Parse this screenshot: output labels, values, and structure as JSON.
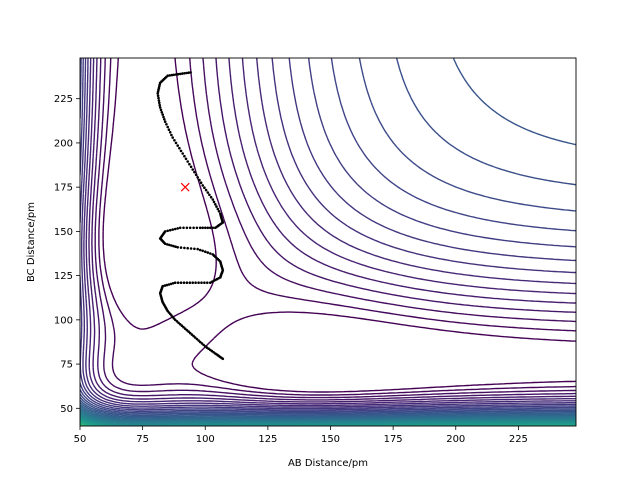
{
  "chart_data": {
    "type": "contour",
    "title": "",
    "xlabel": "AB Distance/pm",
    "ylabel": "BC Distance/pm",
    "xlim": [
      50,
      248
    ],
    "ylim": [
      40,
      248
    ],
    "xticks": [
      50,
      75,
      100,
      125,
      150,
      175,
      200,
      225
    ],
    "yticks": [
      50,
      75,
      100,
      125,
      150,
      175,
      200,
      225
    ],
    "xtick_labels": [
      "50",
      "75",
      "100",
      "125",
      "150",
      "175",
      "200",
      "225"
    ],
    "ytick_labels": [
      "50",
      "75",
      "100",
      "125",
      "150",
      "175",
      "200",
      "225"
    ],
    "colormap": "viridis",
    "grid": false,
    "contour_lines_count": 50,
    "transition_state_marker": {
      "x": 92,
      "y": 175,
      "marker": "x",
      "color": "#ff0000"
    },
    "trajectory": {
      "color": "#000000",
      "style": "dotted",
      "points": [
        [
          107,
          78
        ],
        [
          104,
          81
        ],
        [
          100,
          85
        ],
        [
          96,
          90
        ],
        [
          92,
          95
        ],
        [
          88,
          100
        ],
        [
          85,
          105
        ],
        [
          83,
          110
        ],
        [
          82,
          115
        ],
        [
          83,
          119
        ],
        [
          88,
          121
        ],
        [
          95,
          121
        ],
        [
          102,
          121
        ],
        [
          106,
          124
        ],
        [
          107,
          128
        ],
        [
          106,
          133
        ],
        [
          103,
          137
        ],
        [
          97,
          140
        ],
        [
          89,
          141
        ],
        [
          84,
          143
        ],
        [
          82,
          146
        ],
        [
          84,
          150
        ],
        [
          90,
          152
        ],
        [
          98,
          152
        ],
        [
          104,
          152
        ],
        [
          107,
          155
        ],
        [
          106,
          160
        ],
        [
          103,
          168
        ],
        [
          99,
          176
        ],
        [
          95,
          185
        ],
        [
          91,
          194
        ],
        [
          87,
          203
        ],
        [
          84,
          212
        ],
        [
          82,
          220
        ],
        [
          81,
          228
        ],
        [
          82,
          234
        ],
        [
          85,
          238
        ],
        [
          90,
          239
        ],
        [
          95,
          240
        ]
      ]
    }
  }
}
